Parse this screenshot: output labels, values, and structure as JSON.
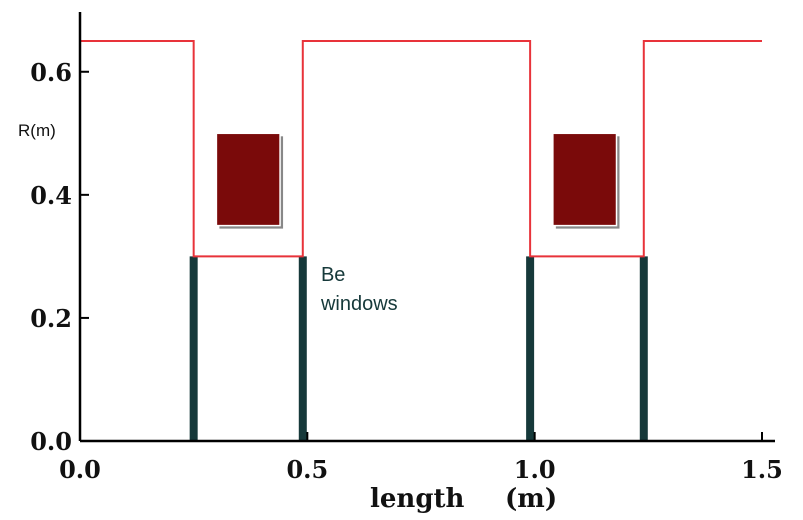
{
  "chart_data": {
    "type": "line",
    "xlabel": "length",
    "xlabel_unit": "(m)",
    "ylabel": "R(m)",
    "xlim": [
      0.0,
      1.5
    ],
    "ylim": [
      0.0,
      0.65
    ],
    "x_ticks": [
      {
        "value": 0.0,
        "label": "0.0"
      },
      {
        "value": 0.5,
        "label": "0.5"
      },
      {
        "value": 1.0,
        "label": "1.0"
      },
      {
        "value": 1.5,
        "label": "1.5"
      }
    ],
    "y_ticks": [
      {
        "value": 0.0,
        "label": "0.0"
      },
      {
        "value": 0.2,
        "label": "0.2"
      },
      {
        "value": 0.4,
        "label": "0.4"
      },
      {
        "value": 0.6,
        "label": "0.6"
      }
    ],
    "grid": false,
    "profile": {
      "color": "#e8333a",
      "points": [
        [
          0.0,
          0.65
        ],
        [
          0.25,
          0.65
        ],
        [
          0.25,
          0.3
        ],
        [
          0.49,
          0.3
        ],
        [
          0.49,
          0.65
        ],
        [
          0.99,
          0.65
        ],
        [
          0.99,
          0.3
        ],
        [
          1.24,
          0.3
        ],
        [
          1.24,
          0.65
        ],
        [
          1.5,
          0.65
        ]
      ]
    },
    "windows": {
      "color": "#16393a",
      "x": [
        0.25,
        0.49,
        0.99,
        1.24
      ],
      "height": 0.3
    },
    "blocks": {
      "color": "#7a0a0a",
      "items": [
        {
          "x0": 0.3,
          "x1": 0.44,
          "y0": 0.35,
          "y1": 0.5
        },
        {
          "x0": 1.04,
          "x1": 1.18,
          "y0": 0.35,
          "y1": 0.5
        }
      ]
    },
    "annotation": {
      "lines": [
        "Be",
        "windows"
      ],
      "color": "#16393a",
      "x": 0.53,
      "y": 0.26
    }
  }
}
